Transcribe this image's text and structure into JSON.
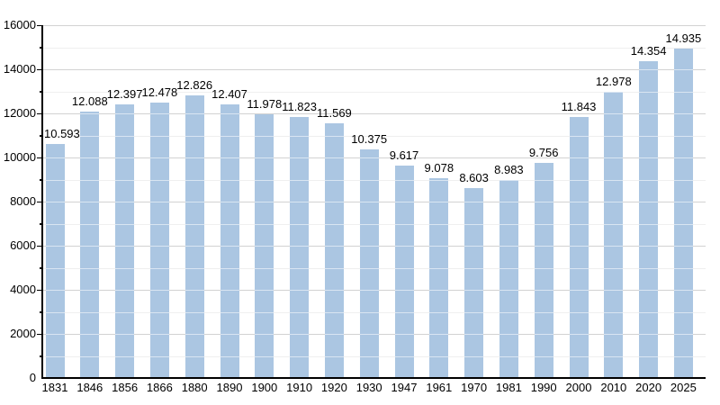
{
  "chart_data": {
    "type": "bar",
    "title": "",
    "xlabel": "",
    "ylabel": "",
    "legend_position": "none",
    "grid": "horizontal major (2000) and minor (1000) gridlines, white where crossing bars",
    "categories": [
      "1831",
      "1846",
      "1856",
      "1866",
      "1880",
      "1890",
      "1900",
      "1910",
      "1920",
      "1930",
      "1947",
      "1961",
      "1970",
      "1981",
      "1990",
      "2000",
      "2010",
      "2020",
      "2025"
    ],
    "values": [
      10593,
      12088,
      12397,
      12478,
      12826,
      12407,
      11978,
      11823,
      11569,
      10375,
      9617,
      9078,
      8603,
      8983,
      9756,
      11843,
      12978,
      14354,
      14935
    ],
    "value_labels": [
      "10.593",
      "12.088",
      "12.397",
      "12.478",
      "12.826",
      "12.407",
      "11.978",
      "11.823",
      "11.569",
      "10.375",
      "9.617",
      "9.078",
      "8.603",
      "8.983",
      "9.756",
      "11.843",
      "12.978",
      "14.354",
      "14.935"
    ],
    "ylim": [
      0,
      16000
    ],
    "ytick_interval": 2000,
    "minor_gridline_interval": 1000,
    "ytick_labels": [
      "0",
      "2000",
      "4000",
      "6000",
      "8000",
      "10000",
      "12000",
      "14000",
      "16000"
    ],
    "colors": {
      "bar_fill": "#abc6e2",
      "gridline_major": "#9c9c9c",
      "gridline_minor": "#dcdcdc",
      "axis": "#000000",
      "background": "#ffffff",
      "text": "#000000"
    }
  }
}
